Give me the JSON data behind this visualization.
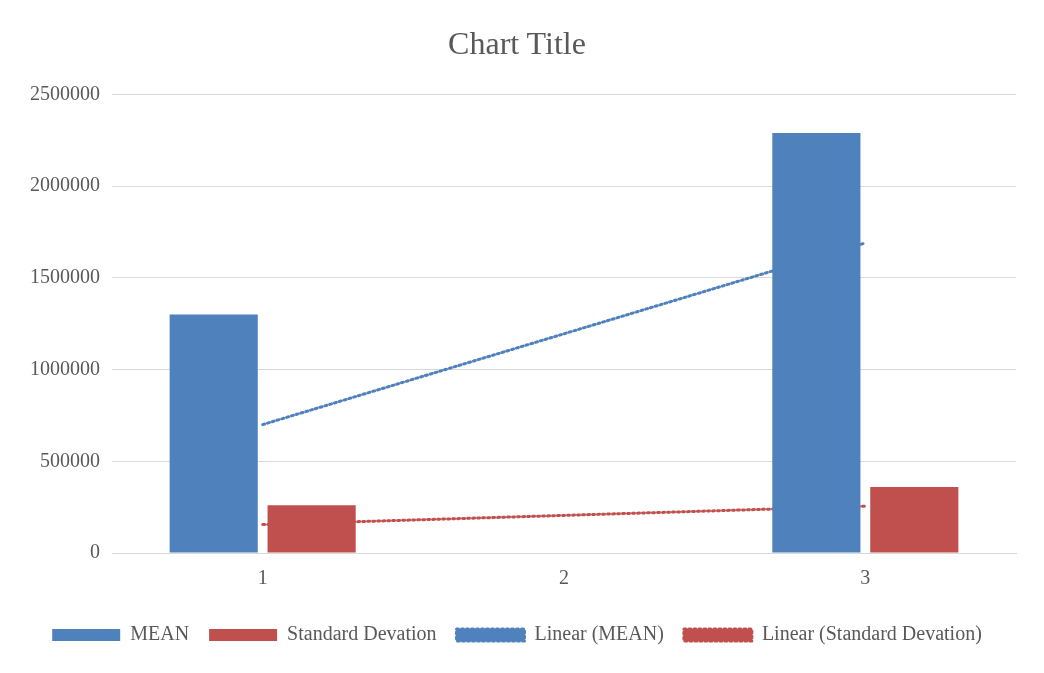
{
  "chart_data": {
    "type": "bar",
    "title": "Chart Title",
    "categories": [
      "1",
      "2",
      "3"
    ],
    "series": [
      {
        "name": "MEAN",
        "color": "#4f81bd",
        "values": [
          1300000,
          null,
          2290000
        ]
      },
      {
        "name": "Standard Devation",
        "color": "#c0504d",
        "values": [
          260000,
          null,
          360000
        ]
      },
      {
        "name": "Linear (MEAN)",
        "type": "line",
        "color": "#4f81bd",
        "line_style": "dotted",
        "marker": "none",
        "values": [
          700000,
          1195000,
          1690000
        ]
      },
      {
        "name": "Linear (Standard Devation)",
        "type": "line",
        "color": "#c0504d",
        "line_style": "dotted",
        "marker": "none",
        "values": [
          155000,
          205000,
          255000
        ]
      }
    ],
    "ylim": [
      0,
      2500000
    ],
    "yticks": [
      0,
      500000,
      1000000,
      1500000,
      2000000,
      2500000
    ],
    "grid": "y",
    "legend": "bottom"
  }
}
